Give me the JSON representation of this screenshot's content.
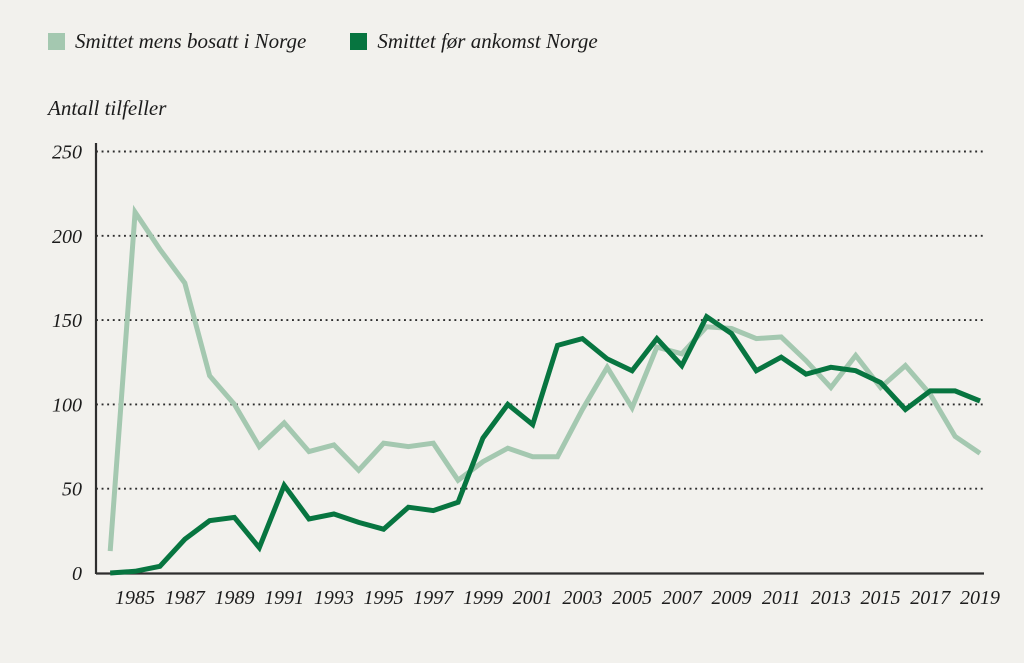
{
  "legend": {
    "items": [
      {
        "label": "Smittet mens bosatt i Norge",
        "color": "#a4c8b0"
      },
      {
        "label": "Smittet før ankomst Norge",
        "color": "#077540"
      }
    ]
  },
  "chart_data": {
    "type": "line",
    "title": "Antall tilfeller",
    "x": [
      1984,
      1985,
      1986,
      1987,
      1988,
      1989,
      1990,
      1991,
      1992,
      1993,
      1994,
      1995,
      1996,
      1997,
      1998,
      1999,
      2000,
      2001,
      2002,
      2003,
      2004,
      2005,
      2006,
      2007,
      2008,
      2009,
      2010,
      2011,
      2012,
      2013,
      2014,
      2015,
      2016,
      2017,
      2018,
      2019
    ],
    "series": [
      {
        "name": "Smittet mens bosatt i Norge",
        "color": "#a4c8b0",
        "values": [
          13,
          214,
          192,
          172,
          117,
          100,
          75,
          89,
          72,
          76,
          61,
          77,
          75,
          77,
          55,
          66,
          74,
          69,
          69,
          97,
          122,
          98,
          134,
          130,
          146,
          145,
          139,
          140,
          126,
          110,
          129,
          110,
          123,
          106,
          81,
          71
        ]
      },
      {
        "name": "Smittet før ankomst Norge",
        "color": "#077540",
        "values": [
          0,
          1,
          4,
          20,
          31,
          33,
          15,
          52,
          32,
          35,
          30,
          26,
          39,
          37,
          42,
          80,
          100,
          88,
          135,
          139,
          127,
          120,
          139,
          123,
          152,
          142,
          120,
          128,
          118,
          122,
          120,
          113,
          97,
          108,
          108,
          102
        ]
      }
    ],
    "ylim": [
      0,
      250
    ],
    "yticks": [
      0,
      50,
      100,
      150,
      200,
      250
    ],
    "xtick_years": [
      1985,
      1987,
      1989,
      1991,
      1993,
      1995,
      1997,
      1999,
      2001,
      2003,
      2005,
      2007,
      2009,
      2011,
      2013,
      2015,
      2017,
      2019
    ],
    "grid": "horizontal-dotted",
    "legend_position": "top-left",
    "background": "#f2f1ed",
    "axis_color": "#2e2e2e"
  }
}
